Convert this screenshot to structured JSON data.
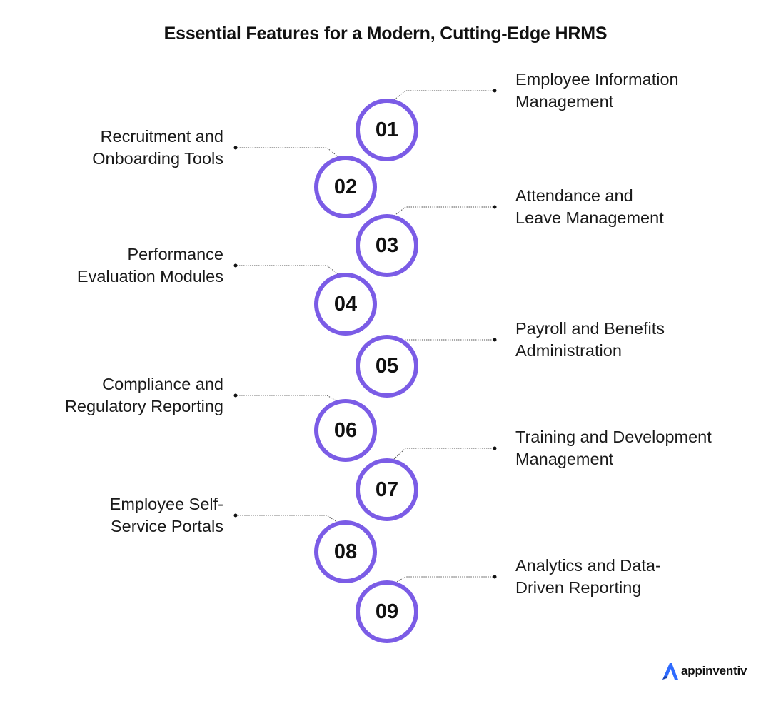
{
  "title": "Essential Features for a Modern, Cutting-Edge HRMS",
  "colors": {
    "ring": "#7b5ce6",
    "text": "#111111",
    "connector": "#555555",
    "logo_accent": "#2f6bff"
  },
  "features": [
    {
      "number": "01",
      "side": "right",
      "lines": [
        "Employee Information",
        "Management"
      ]
    },
    {
      "number": "02",
      "side": "left",
      "lines": [
        "Recruitment and",
        "Onboarding Tools"
      ]
    },
    {
      "number": "03",
      "side": "right",
      "lines": [
        "Attendance and",
        "Leave Management"
      ]
    },
    {
      "number": "04",
      "side": "left",
      "lines": [
        "Performance",
        "Evaluation Modules"
      ]
    },
    {
      "number": "05",
      "side": "right",
      "lines": [
        "Payroll and Benefits",
        "Administration"
      ]
    },
    {
      "number": "06",
      "side": "left",
      "lines": [
        "Compliance and",
        "Regulatory Reporting"
      ]
    },
    {
      "number": "07",
      "side": "right",
      "lines": [
        "Training and Development",
        "Management"
      ]
    },
    {
      "number": "08",
      "side": "left",
      "lines": [
        "Employee Self-",
        "Service Portals"
      ]
    },
    {
      "number": "09",
      "side": "right",
      "lines": [
        "Analytics and Data-",
        "Driven Reporting"
      ]
    }
  ],
  "logo": {
    "text": "appinventiv",
    "icon": "appinventiv-logo-icon"
  }
}
